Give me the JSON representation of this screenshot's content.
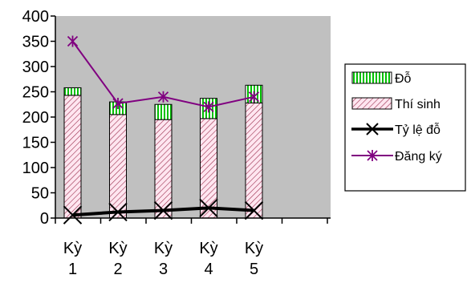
{
  "chart_data": {
    "type": "bar",
    "stacked": true,
    "categories": [
      "Kỳ 1",
      "Kỳ 2",
      "Kỳ 3",
      "Kỳ 4",
      "Kỳ 5"
    ],
    "category_lines": [
      [
        "Kỳ",
        "1"
      ],
      [
        "Kỳ",
        "2"
      ],
      [
        "Kỳ",
        "3"
      ],
      [
        "Kỳ",
        "4"
      ],
      [
        "Kỳ",
        "5"
      ]
    ],
    "series": [
      {
        "name": "Đỗ",
        "kind": "bar",
        "values": [
          15,
          25,
          30,
          40,
          35
        ],
        "pattern": "vertical-green"
      },
      {
        "name": "Thí sinh",
        "kind": "bar",
        "values": [
          243,
          205,
          195,
          197,
          228
        ],
        "pattern": "diagonal-hatch"
      },
      {
        "name": "Tỷ lệ đỗ",
        "kind": "line",
        "values": [
          6,
          12,
          15,
          20,
          15
        ],
        "marker": "x",
        "color": "#000000"
      },
      {
        "name": "Đăng ký",
        "kind": "line",
        "values": [
          350,
          227,
          240,
          220,
          240
        ],
        "marker": "asterisk",
        "color": "#800080"
      }
    ],
    "y_ticks": [
      0,
      50,
      100,
      150,
      200,
      250,
      300,
      350,
      400
    ],
    "ylim": [
      0,
      400
    ],
    "plot_background": "#c0c0c0",
    "bar_fill": "#ffe6f0",
    "hatch_color": "#9a2e4e",
    "stripe_color": "#00c000",
    "legend_position": "right",
    "grid": false
  }
}
